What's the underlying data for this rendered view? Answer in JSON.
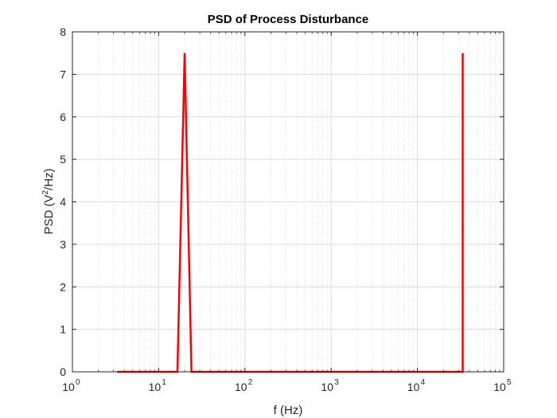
{
  "chart_data": {
    "type": "line",
    "title": "PSD of Process Disturbance",
    "xlabel": "f (Hz)",
    "ylabel_main": "PSD (V",
    "ylabel_sup": "2",
    "ylabel_tail": "/Hz)",
    "x_scale": "log",
    "xlim": [
      1,
      100000
    ],
    "ylim": [
      0,
      8
    ],
    "x_ticks": [
      {
        "base": "10",
        "exp": "0"
      },
      {
        "base": "10",
        "exp": "1"
      },
      {
        "base": "10",
        "exp": "2"
      },
      {
        "base": "10",
        "exp": "3"
      },
      {
        "base": "10",
        "exp": "4"
      },
      {
        "base": "10",
        "exp": "5"
      }
    ],
    "y_ticks": [
      "0",
      "1",
      "2",
      "3",
      "4",
      "5",
      "6",
      "7",
      "8"
    ],
    "grid": true,
    "minor_grid": true,
    "series": [
      {
        "color": "#ff0000",
        "x": [
          3.3,
          16.5,
          20,
          24,
          33500,
          33500,
          33500
        ],
        "y": [
          0,
          0,
          7.5,
          0,
          0,
          7.5,
          7.5
        ]
      }
    ]
  }
}
